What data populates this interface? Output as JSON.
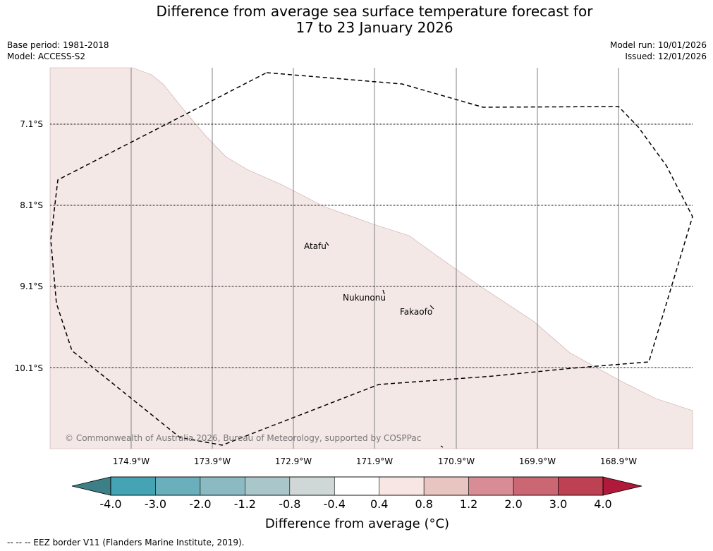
{
  "title_line1": "Difference from average sea surface temperature forecast for",
  "title_line2": "17 to 23 January 2026",
  "base_period": "Base period: 1981-2018",
  "model": "Model: ACCESS-S2",
  "model_run": "Model run: 10/01/2026",
  "issued": "Issued: 12/01/2026",
  "lat_labels": [
    "7.1°S",
    "8.1°S",
    "9.1°S",
    "10.1°S"
  ],
  "lon_labels": [
    "174.9°W",
    "173.9°W",
    "172.9°W",
    "171.9°W",
    "170.9°W",
    "169.9°W",
    "168.9°W"
  ],
  "places": {
    "atafu": "Atafu",
    "nukunonu": "Nukunonu",
    "fakaofo": "Fakaofo"
  },
  "copyright": "© Commonwealth of Australia 2026, Bureau of Meteorology, supported by COSPPac",
  "colorbar": {
    "ticks": [
      "-4.0",
      "-3.0",
      "-2.0",
      "-1.2",
      "-0.8",
      "-0.4",
      "0.4",
      "0.8",
      "1.2",
      "2.0",
      "3.0",
      "4.0"
    ],
    "colors": [
      "#44a4b4",
      "#69b0bc",
      "#8cbac2",
      "#a9c7ca",
      "#d0d8d7",
      "#ffffff",
      "#f7e6e4",
      "#e9c5c1",
      "#d88d96",
      "#cb6673",
      "#bd4152"
    ],
    "under_color": "#3d7f86",
    "over_color": "#b0193a",
    "label": "Difference from average (°C)"
  },
  "anomaly_fill_color": "#f4e8e6",
  "footnote": "-- -- -- EEZ border V11 (Flanders Marine Institute, 2019)."
}
